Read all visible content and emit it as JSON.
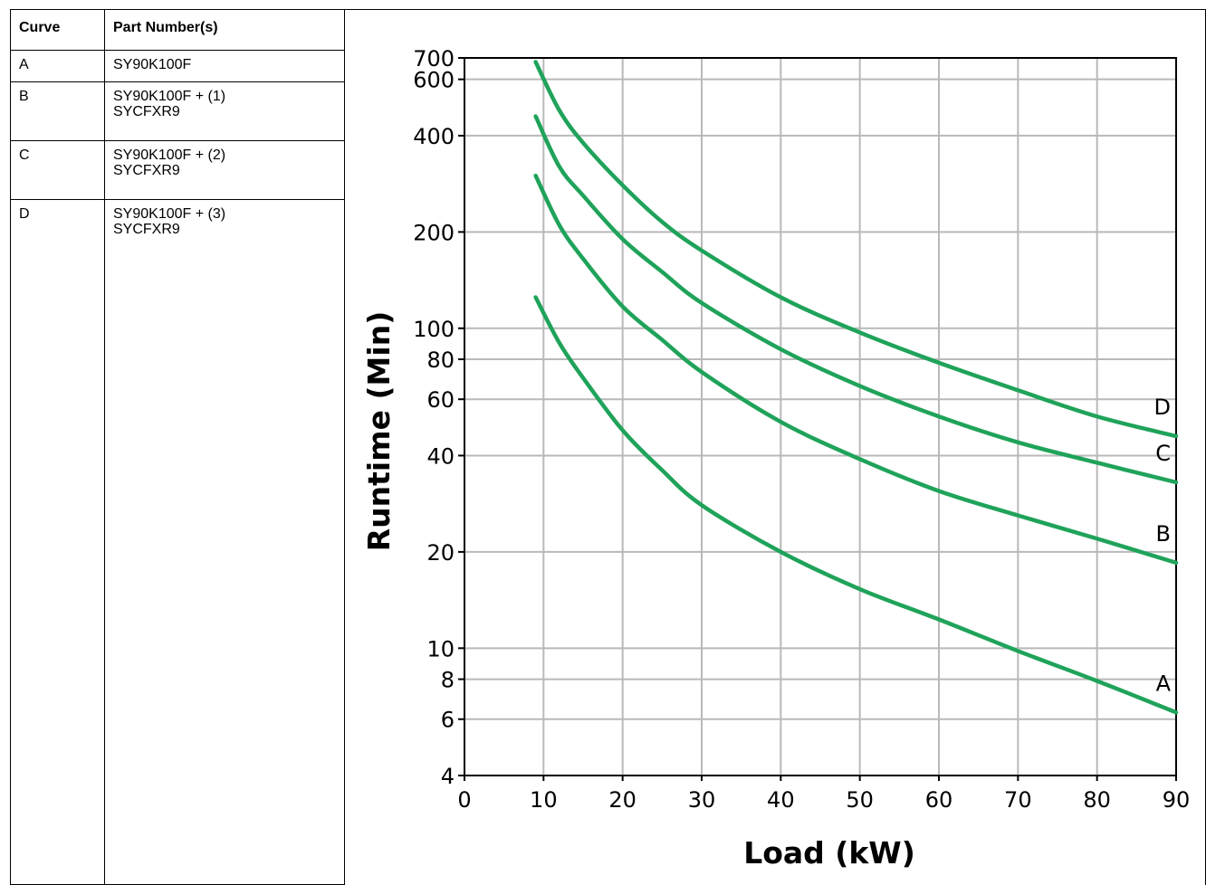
{
  "table": {
    "headers": [
      "Curve",
      "Part Number(s)"
    ],
    "rows": [
      {
        "curve": "A",
        "parts": "SY90K100F"
      },
      {
        "curve": "B",
        "parts": "SY90K100F + (1)\nSYCFXR9"
      },
      {
        "curve": "C",
        "parts": "SY90K100F + (2)\nSYCFXR9"
      },
      {
        "curve": "D",
        "parts": "SY90K100F + (3)\nSYCFXR9"
      }
    ]
  },
  "chart_data": {
    "type": "line",
    "title": "",
    "xlabel": "Load (kW)",
    "ylabel": "Runtime (Min)",
    "xlim": [
      0,
      90
    ],
    "ylim": [
      4,
      700
    ],
    "yscale": "log",
    "grid": true,
    "x_ticks": [
      0,
      10,
      20,
      30,
      40,
      50,
      60,
      70,
      80,
      90
    ],
    "y_ticks": [
      4,
      6,
      8,
      10,
      20,
      40,
      60,
      80,
      100,
      200,
      400,
      600,
      700
    ],
    "line_color": "#1fa35a",
    "series": [
      {
        "name": "A",
        "x": [
          9,
          12,
          15,
          20,
          25,
          30,
          40,
          50,
          60,
          70,
          80,
          90
        ],
        "values": [
          125,
          90,
          70,
          48,
          36,
          28,
          20,
          15.3,
          12.3,
          9.8,
          7.9,
          6.3
        ]
      },
      {
        "name": "B",
        "x": [
          9,
          12,
          15,
          20,
          25,
          30,
          40,
          50,
          60,
          70,
          80,
          90
        ],
        "values": [
          300,
          210,
          165,
          117,
          92,
          73,
          51,
          39,
          31,
          26,
          22,
          18.5
        ]
      },
      {
        "name": "C",
        "x": [
          9,
          12,
          15,
          20,
          25,
          30,
          40,
          50,
          60,
          70,
          80,
          90
        ],
        "values": [
          460,
          320,
          260,
          190,
          150,
          120,
          86,
          66,
          53,
          44,
          38,
          33
        ]
      },
      {
        "name": "D",
        "x": [
          9,
          12,
          15,
          20,
          25,
          30,
          40,
          50,
          60,
          70,
          80,
          90
        ],
        "values": [
          680,
          480,
          380,
          280,
          215,
          175,
          125,
          97,
          78,
          64,
          53,
          46
        ]
      }
    ]
  }
}
